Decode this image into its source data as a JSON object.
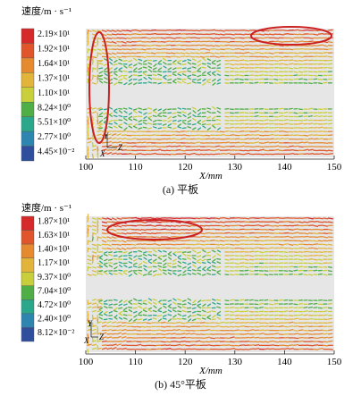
{
  "chart_data": [
    {
      "type": "heatmap",
      "caption": "(a) 平板",
      "legend_title": "速度/m · s⁻¹",
      "legend": [
        "2.19×10¹",
        "1.92×10¹",
        "1.64×10¹",
        "1.37×10¹",
        "1.10×10¹",
        "8.24×10⁰",
        "5.51×10⁰",
        "2.77×10⁰",
        "4.45×10⁻²"
      ],
      "legend_colors": [
        "#d62a2a",
        "#e0552a",
        "#e58a2f",
        "#e2b53a",
        "#c9cf3a",
        "#4fae45",
        "#2ba88c",
        "#2e86b0",
        "#2f4f9e"
      ],
      "xlabel": "X/mm",
      "x_ticks": [
        "100",
        "110",
        "120",
        "130",
        "140",
        "150"
      ],
      "xlim": [
        100,
        150
      ],
      "axis_triad": {
        "y": "Y",
        "x": "X",
        "z": "Z"
      },
      "speed_range": [
        0.0445,
        21.9
      ]
    },
    {
      "type": "heatmap",
      "caption": "(b) 45°平板",
      "legend_title": "速度/m · s⁻¹",
      "legend": [
        "1.87×10¹",
        "1.63×10¹",
        "1.40×10¹",
        "1.17×10¹",
        "9.37×10⁰",
        "7.04×10⁰",
        "4.72×10⁰",
        "2.40×10⁰",
        "8.12×10⁻²"
      ],
      "legend_colors": [
        "#d62a2a",
        "#e0552a",
        "#e58a2f",
        "#e2b53a",
        "#c9cf3a",
        "#4fae45",
        "#2ba88c",
        "#2e86b0",
        "#2f4f9e"
      ],
      "xlabel": "X/mm",
      "x_ticks": [
        "100",
        "110",
        "120",
        "130",
        "140",
        "150"
      ],
      "xlim": [
        100,
        150
      ],
      "axis_triad": {
        "y": "Y",
        "x": "X",
        "z": "Z"
      },
      "speed_range": [
        0.0812,
        18.7
      ]
    }
  ]
}
